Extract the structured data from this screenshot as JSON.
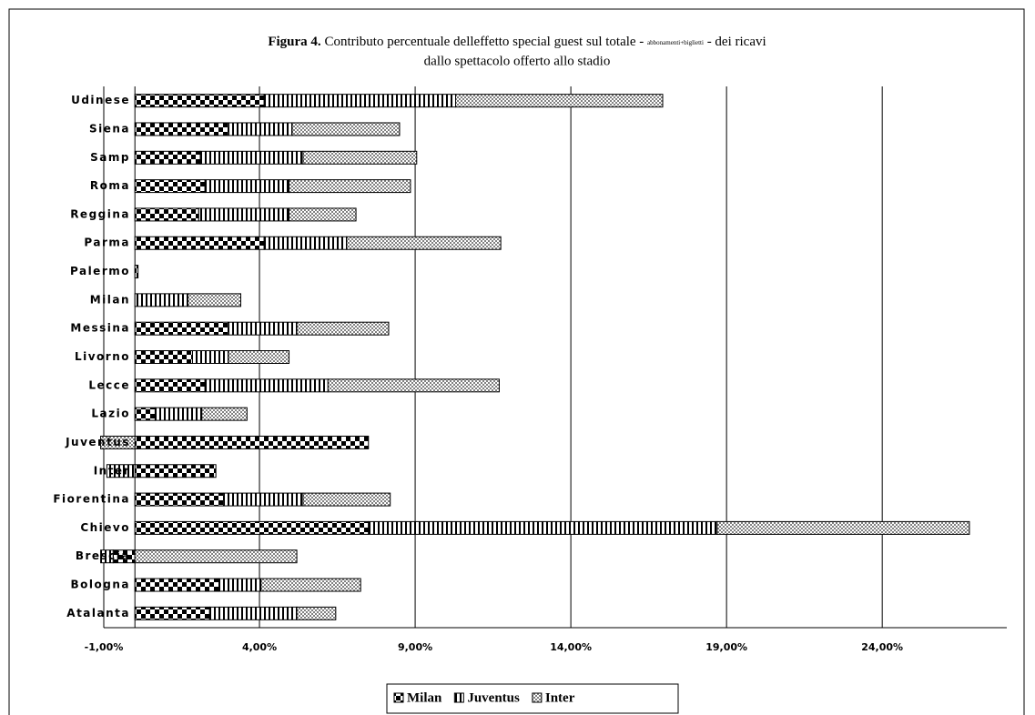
{
  "chart_data": {
    "type": "stacked-bar-horizontal",
    "title_label": "Figura 4.",
    "title": "Contributo percentuale delleffetto special guest sul totale -",
    "title_note": "abbonamenti+biglietti",
    "title_end": "- dei ricavi",
    "subtitle": "dallo spettacolo offerto allo stadio",
    "categories": [
      "Atalanta",
      "Bologna",
      "Brescia",
      "Chievo",
      "Fiorentina",
      "Inter",
      "Juventus",
      "Lazio",
      "Lecce",
      "Livorno",
      "Messina",
      "Milan",
      "Palermo",
      "Parma",
      "Reggina",
      "Roma",
      "Samp",
      "Siena",
      "Udinese"
    ],
    "series": [
      {
        "name": "Milan",
        "color": "#000000",
        "values": [
          2.4,
          2.7,
          -0.7,
          7.5,
          2.85,
          2.6,
          7.5,
          0.65,
          2.25,
          1.85,
          3.0,
          0,
          0.1,
          4.15,
          2.05,
          2.25,
          2.1,
          3.0,
          4.15
        ]
      },
      {
        "name": "Juventus",
        "color": "#000000",
        "values": [
          2.8,
          1.35,
          -0.4,
          11.2,
          2.55,
          -0.9,
          0,
          1.5,
          3.95,
          1.15,
          2.2,
          1.7,
          0,
          2.65,
          2.9,
          2.7,
          3.3,
          2.05,
          6.15
        ]
      },
      {
        "name": "Inter",
        "color": "#808080",
        "values": [
          1.25,
          3.2,
          5.2,
          8.1,
          2.8,
          0,
          -1.1,
          1.45,
          5.5,
          1.95,
          2.95,
          1.7,
          0,
          4.95,
          2.15,
          3.9,
          3.65,
          3.45,
          6.65
        ]
      }
    ],
    "xlim": [
      -1,
      28
    ],
    "xticks": [
      {
        "value": -1,
        "label": "-1,00%"
      },
      {
        "value": 4,
        "label": "4,00%"
      },
      {
        "value": 9,
        "label": "9,00%"
      },
      {
        "value": 14,
        "label": "14,00%"
      },
      {
        "value": 19,
        "label": "19,00%"
      },
      {
        "value": 24,
        "label": "24,00%"
      }
    ],
    "grid": true,
    "legend": "bottom"
  }
}
